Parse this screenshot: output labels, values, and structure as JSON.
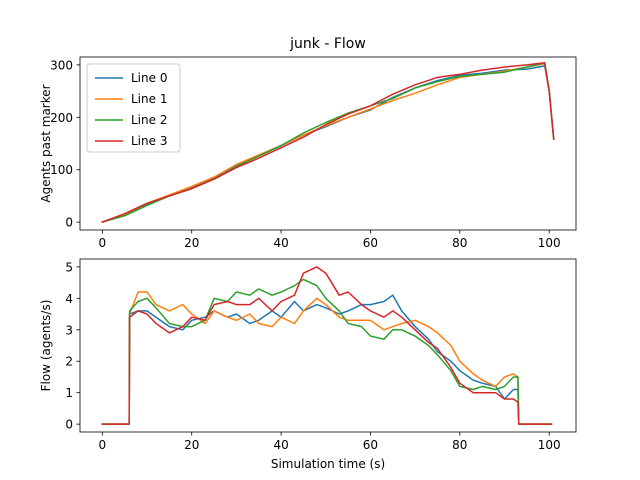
{
  "figure": {
    "title": "junk - Flow"
  },
  "chart_data": [
    {
      "type": "line",
      "title": "junk - Flow",
      "xlabel": "",
      "ylabel": "Agents past marker",
      "xlim": [
        -5,
        106
      ],
      "ylim": [
        -15,
        315
      ],
      "xticks": [
        0,
        20,
        40,
        60,
        80,
        100
      ],
      "yticks": [
        0,
        100,
        200,
        300
      ],
      "legend": "top-left",
      "series": [
        {
          "name": "Line 0",
          "color": "#1f77b4",
          "x": [
            0,
            5,
            10,
            15,
            20,
            25,
            30,
            35,
            40,
            45,
            50,
            55,
            60,
            65,
            70,
            75,
            80,
            85,
            90,
            95,
            99,
            100,
            101
          ],
          "y": [
            0,
            14,
            34,
            50,
            66,
            84,
            108,
            126,
            146,
            166,
            182,
            200,
            214,
            238,
            256,
            270,
            280,
            284,
            290,
            292,
            298,
            250,
            158
          ]
        },
        {
          "name": "Line 1",
          "color": "#ff7f0e",
          "x": [
            0,
            5,
            10,
            15,
            20,
            25,
            30,
            35,
            40,
            45,
            50,
            55,
            60,
            65,
            70,
            75,
            80,
            85,
            90,
            95,
            99,
            100,
            101
          ],
          "y": [
            0,
            15,
            36,
            52,
            68,
            86,
            110,
            128,
            146,
            166,
            184,
            200,
            216,
            232,
            246,
            262,
            276,
            282,
            288,
            296,
            302,
            250,
            160
          ]
        },
        {
          "name": "Line 2",
          "color": "#2ca02c",
          "x": [
            0,
            5,
            10,
            15,
            20,
            25,
            30,
            35,
            40,
            45,
            50,
            55,
            60,
            65,
            70,
            75,
            80,
            85,
            90,
            95,
            99,
            100,
            101
          ],
          "y": [
            0,
            12,
            32,
            50,
            64,
            82,
            106,
            126,
            146,
            170,
            190,
            208,
            222,
            236,
            256,
            268,
            278,
            282,
            286,
            296,
            304,
            250,
            160
          ]
        },
        {
          "name": "Line 3",
          "color": "#d62728",
          "x": [
            0,
            5,
            10,
            15,
            20,
            25,
            30,
            35,
            40,
            45,
            50,
            55,
            60,
            65,
            70,
            75,
            80,
            85,
            90,
            95,
            99,
            100,
            101
          ],
          "y": [
            0,
            16,
            36,
            50,
            64,
            82,
            104,
            122,
            142,
            162,
            186,
            206,
            222,
            244,
            262,
            276,
            282,
            290,
            296,
            300,
            304,
            250,
            158
          ]
        }
      ]
    },
    {
      "type": "line",
      "title": "",
      "xlabel": "Simulation time (s)",
      "ylabel": "Flow (agents/s)",
      "xlim": [
        -5,
        106
      ],
      "ylim": [
        -0.25,
        5.25
      ],
      "xticks": [
        0,
        20,
        40,
        60,
        80,
        100
      ],
      "yticks": [
        0,
        1,
        2,
        3,
        4,
        5
      ],
      "legend": "none",
      "series": [
        {
          "name": "Line 0",
          "color": "#1f77b4",
          "x": [
            0,
            6,
            6.1,
            8,
            10,
            12,
            15,
            18,
            20,
            23,
            25,
            28,
            30,
            33,
            35,
            38,
            40,
            43,
            45,
            48,
            50,
            53,
            55,
            58,
            60,
            63,
            65,
            67,
            70,
            73,
            75,
            78,
            80,
            83,
            85,
            88,
            90,
            92,
            93,
            93.2,
            100.5
          ],
          "y": [
            0,
            0,
            3.5,
            3.6,
            3.6,
            3.4,
            3.1,
            3.0,
            3.3,
            3.4,
            3.6,
            3.4,
            3.5,
            3.2,
            3.3,
            3.6,
            3.4,
            3.9,
            3.6,
            3.8,
            3.7,
            3.5,
            3.6,
            3.8,
            3.8,
            3.9,
            4.1,
            3.6,
            3.1,
            2.7,
            2.3,
            2.0,
            1.7,
            1.4,
            1.3,
            1.2,
            0.8,
            1.1,
            1.1,
            0,
            0
          ]
        },
        {
          "name": "Line 1",
          "color": "#ff7f0e",
          "x": [
            0,
            6,
            6.1,
            8,
            10,
            12,
            15,
            18,
            20,
            23,
            25,
            28,
            30,
            33,
            35,
            38,
            40,
            43,
            45,
            48,
            50,
            53,
            55,
            58,
            60,
            63,
            65,
            67,
            70,
            73,
            75,
            78,
            80,
            83,
            85,
            88,
            90,
            92,
            93,
            93.2,
            100.5
          ],
          "y": [
            0,
            0,
            3.5,
            4.2,
            4.2,
            3.8,
            3.6,
            3.8,
            3.5,
            3.2,
            3.6,
            3.4,
            3.3,
            3.5,
            3.2,
            3.1,
            3.4,
            3.2,
            3.6,
            4.0,
            3.8,
            3.4,
            3.3,
            3.3,
            3.3,
            3.0,
            3.1,
            3.2,
            3.3,
            3.1,
            2.9,
            2.5,
            2.0,
            1.6,
            1.4,
            1.2,
            1.5,
            1.6,
            1.5,
            0,
            0
          ]
        },
        {
          "name": "Line 2",
          "color": "#2ca02c",
          "x": [
            0,
            6,
            6.1,
            8,
            10,
            12,
            15,
            18,
            20,
            23,
            25,
            28,
            30,
            33,
            35,
            38,
            40,
            43,
            45,
            48,
            50,
            53,
            55,
            58,
            60,
            63,
            65,
            67,
            70,
            73,
            75,
            78,
            80,
            83,
            85,
            88,
            90,
            92,
            93,
            93.2,
            100.5
          ],
          "y": [
            0,
            0,
            3.6,
            3.9,
            4.0,
            3.7,
            3.2,
            3.1,
            3.1,
            3.3,
            4.0,
            3.9,
            4.2,
            4.1,
            4.3,
            4.1,
            4.2,
            4.4,
            4.6,
            4.4,
            4.0,
            3.6,
            3.2,
            3.1,
            2.8,
            2.7,
            3.0,
            3.0,
            2.8,
            2.5,
            2.2,
            1.7,
            1.2,
            1.1,
            1.2,
            1.1,
            1.2,
            1.5,
            1.5,
            0,
            0
          ]
        },
        {
          "name": "Line 3",
          "color": "#d62728",
          "x": [
            0,
            6,
            6.1,
            8,
            10,
            12,
            15,
            18,
            20,
            23,
            25,
            28,
            30,
            33,
            35,
            38,
            40,
            43,
            45,
            48,
            50,
            53,
            55,
            58,
            60,
            63,
            65,
            67,
            70,
            73,
            75,
            78,
            80,
            83,
            85,
            88,
            90,
            92,
            93,
            93.2,
            100.5
          ],
          "y": [
            0,
            0,
            3.4,
            3.6,
            3.5,
            3.2,
            2.9,
            3.1,
            3.4,
            3.3,
            3.8,
            3.9,
            3.8,
            3.8,
            4.0,
            3.6,
            3.9,
            4.1,
            4.8,
            5.0,
            4.8,
            4.1,
            4.2,
            3.8,
            3.6,
            3.4,
            3.6,
            3.4,
            3.0,
            2.6,
            2.4,
            1.8,
            1.3,
            1.0,
            1.0,
            1.0,
            0.8,
            0.8,
            0.7,
            0,
            0
          ]
        }
      ]
    }
  ]
}
